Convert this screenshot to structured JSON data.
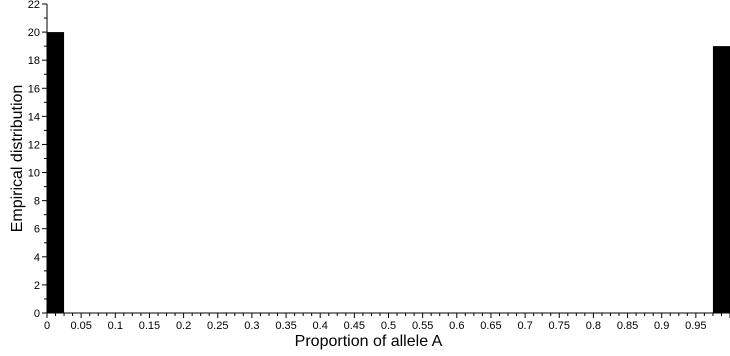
{
  "chart_data": {
    "type": "bar",
    "title": "",
    "xlabel": "Proportion of allele A",
    "ylabel": "Empirical distribution",
    "xlim": [
      0,
      1
    ],
    "ylim": [
      0,
      22
    ],
    "x_ticks": [
      "0",
      "0.05",
      "0.1",
      "0.15",
      "0.2",
      "0.25",
      "0.3",
      "0.35",
      "0.4",
      "0.45",
      "0.5",
      "0.55",
      "0.6",
      "0.65",
      "0.7",
      "0.75",
      "0.8",
      "0.85",
      "0.9",
      "0.95"
    ],
    "y_ticks": [
      "0",
      "2",
      "4",
      "6",
      "8",
      "10",
      "12",
      "14",
      "16",
      "18",
      "20",
      "22"
    ],
    "bin_width": 0.025,
    "bars": [
      {
        "bin_start": 0.0,
        "bin_end": 0.025,
        "value": 20
      },
      {
        "bin_start": 0.975,
        "bin_end": 1.0,
        "value": 19
      }
    ],
    "bar_color": "#000000",
    "grid": false,
    "legend": "none"
  }
}
